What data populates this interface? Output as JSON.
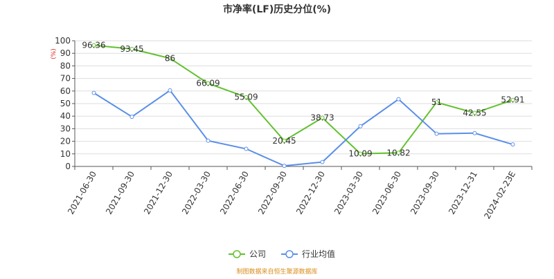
{
  "chart_data": {
    "type": "line",
    "title": "市净率(LF)历史分位(%)",
    "y_label": "(%)",
    "categories": [
      "2021-06-30",
      "2021-09-30",
      "2021-12-30",
      "2022-03-30",
      "2022-06-30",
      "2022-09-30",
      "2022-12-30",
      "2023-03-30",
      "2023-06-30",
      "2023-09-30",
      "2023-12-31",
      "2024-02-23E"
    ],
    "series": [
      {
        "name": "公司",
        "color": "#62c12e",
        "values": [
          96.36,
          93.45,
          86,
          66.09,
          55.09,
          20.45,
          38.73,
          10.09,
          10.82,
          51,
          42.55,
          52.91
        ]
      },
      {
        "name": "行业均值",
        "color": "#5a8ee8",
        "values": [
          58.5,
          39.5,
          60.5,
          20.5,
          14,
          0.5,
          3.5,
          32,
          53.5,
          26,
          26.5,
          17.5
        ]
      }
    ],
    "ylim": [
      0,
      100
    ],
    "yticks": [
      0,
      10,
      20,
      30,
      40,
      50,
      60,
      70,
      80,
      90,
      100
    ],
    "grid": true,
    "source": "制图数据来自恒生聚源数据库"
  }
}
